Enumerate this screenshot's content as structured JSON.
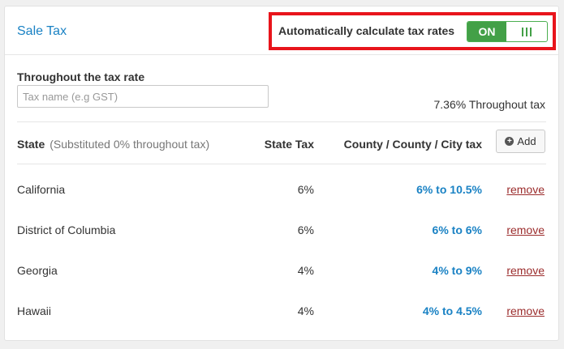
{
  "section": {
    "title": "Sale Tax"
  },
  "auto_calc": {
    "label": "Automatically calculate tax rates",
    "toggle_state": "ON"
  },
  "rate": {
    "label": "Throughout the tax rate",
    "placeholder": "Tax name (e.g GST)",
    "value": "",
    "throughout_text": "7.36% Throughout tax"
  },
  "table": {
    "headers": {
      "state": "State",
      "state_sub": "(Substituted 0% throughout tax)",
      "state_tax": "State Tax",
      "county": "County / County / City tax",
      "add_label": "Add"
    },
    "rows": [
      {
        "state": "California",
        "state_tax": "6%",
        "county": "6% to 10.5%",
        "remove": "remove"
      },
      {
        "state": "District of Columbia",
        "state_tax": "6%",
        "county": "6% to 6%",
        "remove": "remove"
      },
      {
        "state": "Georgia",
        "state_tax": "4%",
        "county": "4% to 9%",
        "remove": "remove"
      },
      {
        "state": "Hawaii",
        "state_tax": "4%",
        "county": "4% to 4.5%",
        "remove": "remove"
      }
    ]
  },
  "colors": {
    "accent_blue": "#1a82c4",
    "toggle_green": "#43a047",
    "highlight_red": "#e8141b",
    "remove_link": "#9b2c2c"
  }
}
